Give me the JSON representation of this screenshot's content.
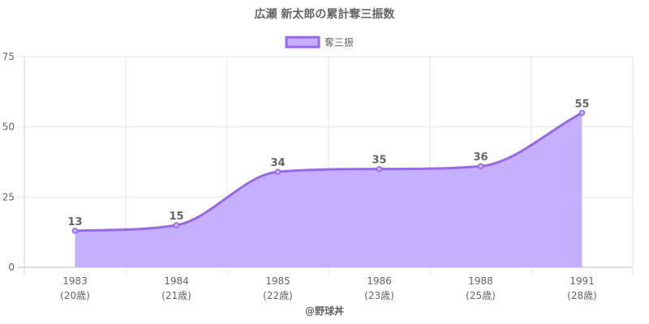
{
  "chart_data": {
    "type": "area",
    "title": "広瀬 新太郎の累計奪三振数",
    "series": [
      {
        "name": "奪三振",
        "values": [
          13,
          15,
          34,
          35,
          36,
          55
        ]
      }
    ],
    "categories": [
      "1983",
      "1984",
      "1985",
      "1986",
      "1988",
      "1991"
    ],
    "ages": [
      "(20歳)",
      "(21歳)",
      "(22歳)",
      "(23歳)",
      "(25歳)",
      "(28歳)"
    ],
    "data_labels": [
      "13",
      "15",
      "34",
      "35",
      "36",
      "55"
    ],
    "yticks": [
      "0",
      "25",
      "50",
      "75"
    ],
    "ylim": [
      0,
      75
    ],
    "grid": true,
    "legend_position": "top",
    "colors": {
      "line": "#9966ee",
      "fill": "#c4b0ff"
    }
  },
  "credit": "@野球丼"
}
